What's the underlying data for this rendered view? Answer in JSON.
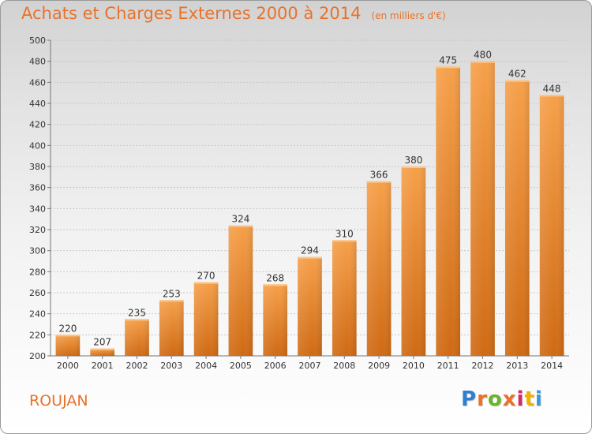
{
  "header": {
    "title": "Achats et Charges Externes 2000 à 2014",
    "subtitle": "(en milliers d'€)"
  },
  "footer": {
    "place": "ROUJAN",
    "logo": "Proxiti",
    "logo_colors": [
      "#2f7fd0",
      "#e8722a",
      "#6ab42d",
      "#e8722a",
      "#d42a6a",
      "#f0b400",
      "#3a9ad9"
    ]
  },
  "chart_data": {
    "type": "bar",
    "title": "Achats et Charges Externes 2000 à 2014",
    "subtitle": "(en milliers d'€)",
    "xlabel": "",
    "ylabel": "",
    "categories": [
      "2000",
      "2001",
      "2002",
      "2003",
      "2004",
      "2005",
      "2006",
      "2007",
      "2008",
      "2009",
      "2010",
      "2011",
      "2012",
      "2013",
      "2014"
    ],
    "values": [
      220,
      207,
      235,
      253,
      270,
      324,
      268,
      294,
      310,
      366,
      380,
      475,
      480,
      462,
      448
    ],
    "ylim": [
      200,
      500
    ],
    "yticks": [
      200,
      220,
      240,
      260,
      280,
      300,
      320,
      340,
      360,
      380,
      400,
      420,
      440,
      460,
      480,
      500
    ],
    "grid": true,
    "bar_color": "#f08a2c",
    "bar_color_dark": "#cf6a14",
    "label_color": "#333333"
  }
}
